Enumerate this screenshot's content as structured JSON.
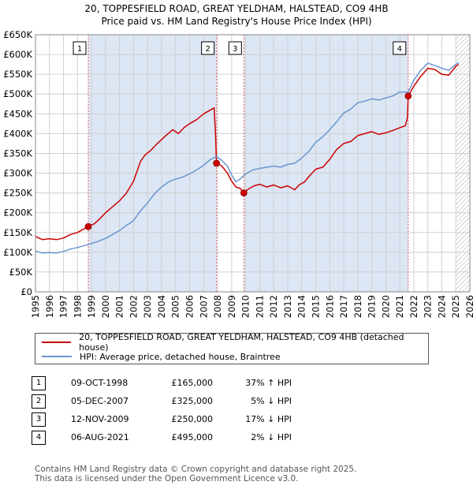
{
  "title": {
    "line1": "20, TOPPESFIELD ROAD, GREAT YELDHAM, HALSTEAD, CO9 4HB",
    "line2": "Price paid vs. HM Land Registry's House Price Index (HPI)"
  },
  "colors": {
    "property": "#cc0000",
    "hpi": "#6b95d0",
    "vline": "#e06060",
    "shade": "#dce6f4",
    "hatch": "#aaaaaa"
  },
  "chart_data": {
    "type": "line",
    "xlim": [
      1995,
      2026
    ],
    "ylim": [
      0,
      650000
    ],
    "y_ticks": [
      {
        "value": 0,
        "label": "£0"
      },
      {
        "value": 50000,
        "label": "£50K"
      },
      {
        "value": 100000,
        "label": "£100K"
      },
      {
        "value": 150000,
        "label": "£150K"
      },
      {
        "value": 200000,
        "label": "£200K"
      },
      {
        "value": 250000,
        "label": "£250K"
      },
      {
        "value": 300000,
        "label": "£300K"
      },
      {
        "value": 350000,
        "label": "£350K"
      },
      {
        "value": 400000,
        "label": "£400K"
      },
      {
        "value": 450000,
        "label": "£450K"
      },
      {
        "value": 500000,
        "label": "£500K"
      },
      {
        "value": 550000,
        "label": "£550K"
      },
      {
        "value": 600000,
        "label": "£600K"
      },
      {
        "value": 650000,
        "label": "£650K"
      }
    ],
    "x_ticks": [
      "1995",
      "1996",
      "1997",
      "1998",
      "1999",
      "2000",
      "2001",
      "2002",
      "2003",
      "2004",
      "2005",
      "2006",
      "2007",
      "2008",
      "2009",
      "2010",
      "2011",
      "2012",
      "2013",
      "2014",
      "2015",
      "2016",
      "2017",
      "2018",
      "2019",
      "2020",
      "2021",
      "2022",
      "2023",
      "2024",
      "2025",
      "2026"
    ],
    "hatch_from": 2025.0,
    "series": [
      {
        "name": "20, TOPPESFIELD ROAD, GREAT YELDHAM, HALSTEAD, CO9 4HB (detached house)",
        "role": "property",
        "points": [
          [
            1995.0,
            140000
          ],
          [
            1995.5,
            132000
          ],
          [
            1996.0,
            134000
          ],
          [
            1996.5,
            132000
          ],
          [
            1997.0,
            136000
          ],
          [
            1997.5,
            145000
          ],
          [
            1998.0,
            150000
          ],
          [
            1998.5,
            160000
          ],
          [
            1998.77,
            165000
          ],
          [
            1999.2,
            172000
          ],
          [
            1999.6,
            185000
          ],
          [
            2000.0,
            200000
          ],
          [
            2000.5,
            215000
          ],
          [
            2001.0,
            230000
          ],
          [
            2001.5,
            250000
          ],
          [
            2002.0,
            280000
          ],
          [
            2002.5,
            330000
          ],
          [
            2002.8,
            345000
          ],
          [
            2003.3,
            360000
          ],
          [
            2003.7,
            375000
          ],
          [
            2004.0,
            385000
          ],
          [
            2004.3,
            395000
          ],
          [
            2004.8,
            410000
          ],
          [
            2005.2,
            400000
          ],
          [
            2005.6,
            415000
          ],
          [
            2006.0,
            425000
          ],
          [
            2006.5,
            435000
          ],
          [
            2007.0,
            450000
          ],
          [
            2007.5,
            460000
          ],
          [
            2007.75,
            465000
          ],
          [
            2007.85,
            400000
          ],
          [
            2007.92,
            325000
          ],
          [
            2008.3,
            318000
          ],
          [
            2008.7,
            300000
          ],
          [
            2009.0,
            280000
          ],
          [
            2009.3,
            265000
          ],
          [
            2009.6,
            262000
          ],
          [
            2009.87,
            250000
          ],
          [
            2010.2,
            260000
          ],
          [
            2010.6,
            268000
          ],
          [
            2011.0,
            272000
          ],
          [
            2011.5,
            265000
          ],
          [
            2012.0,
            270000
          ],
          [
            2012.5,
            263000
          ],
          [
            2013.0,
            268000
          ],
          [
            2013.5,
            258000
          ],
          [
            2013.8,
            270000
          ],
          [
            2014.2,
            278000
          ],
          [
            2014.6,
            295000
          ],
          [
            2015.0,
            310000
          ],
          [
            2015.5,
            315000
          ],
          [
            2016.0,
            335000
          ],
          [
            2016.5,
            360000
          ],
          [
            2017.0,
            375000
          ],
          [
            2017.5,
            380000
          ],
          [
            2018.0,
            395000
          ],
          [
            2018.5,
            400000
          ],
          [
            2019.0,
            405000
          ],
          [
            2019.5,
            398000
          ],
          [
            2020.0,
            402000
          ],
          [
            2020.5,
            408000
          ],
          [
            2021.0,
            415000
          ],
          [
            2021.4,
            420000
          ],
          [
            2021.55,
            440000
          ],
          [
            2021.6,
            495000
          ],
          [
            2022.0,
            520000
          ],
          [
            2022.5,
            545000
          ],
          [
            2023.0,
            565000
          ],
          [
            2023.5,
            562000
          ],
          [
            2024.0,
            550000
          ],
          [
            2024.5,
            548000
          ],
          [
            2025.0,
            570000
          ],
          [
            2025.2,
            575000
          ]
        ]
      },
      {
        "name": "HPI: Average price, detached house, Braintree",
        "role": "hpi",
        "points": [
          [
            1995.0,
            103000
          ],
          [
            1995.5,
            98000
          ],
          [
            1996.0,
            99000
          ],
          [
            1996.5,
            98000
          ],
          [
            1997.0,
            102000
          ],
          [
            1997.5,
            108000
          ],
          [
            1998.0,
            112000
          ],
          [
            1998.5,
            117000
          ],
          [
            1999.0,
            122000
          ],
          [
            1999.5,
            128000
          ],
          [
            2000.0,
            135000
          ],
          [
            2000.5,
            145000
          ],
          [
            2001.0,
            155000
          ],
          [
            2001.5,
            168000
          ],
          [
            2002.0,
            180000
          ],
          [
            2002.5,
            205000
          ],
          [
            2003.0,
            225000
          ],
          [
            2003.5,
            248000
          ],
          [
            2004.0,
            265000
          ],
          [
            2004.5,
            278000
          ],
          [
            2005.0,
            285000
          ],
          [
            2005.5,
            290000
          ],
          [
            2006.0,
            298000
          ],
          [
            2006.5,
            308000
          ],
          [
            2007.0,
            320000
          ],
          [
            2007.5,
            335000
          ],
          [
            2007.92,
            342000
          ],
          [
            2008.3,
            332000
          ],
          [
            2008.7,
            318000
          ],
          [
            2009.0,
            295000
          ],
          [
            2009.3,
            278000
          ],
          [
            2009.6,
            285000
          ],
          [
            2010.0,
            298000
          ],
          [
            2010.5,
            308000
          ],
          [
            2011.0,
            312000
          ],
          [
            2011.5,
            315000
          ],
          [
            2012.0,
            318000
          ],
          [
            2012.5,
            315000
          ],
          [
            2013.0,
            322000
          ],
          [
            2013.5,
            325000
          ],
          [
            2014.0,
            338000
          ],
          [
            2014.5,
            355000
          ],
          [
            2015.0,
            378000
          ],
          [
            2015.5,
            392000
          ],
          [
            2016.0,
            410000
          ],
          [
            2016.5,
            430000
          ],
          [
            2017.0,
            452000
          ],
          [
            2017.5,
            462000
          ],
          [
            2018.0,
            478000
          ],
          [
            2018.5,
            482000
          ],
          [
            2019.0,
            488000
          ],
          [
            2019.5,
            485000
          ],
          [
            2020.0,
            490000
          ],
          [
            2020.5,
            495000
          ],
          [
            2021.0,
            505000
          ],
          [
            2021.6,
            505000
          ],
          [
            2022.0,
            535000
          ],
          [
            2022.5,
            560000
          ],
          [
            2023.0,
            578000
          ],
          [
            2023.5,
            572000
          ],
          [
            2024.0,
            565000
          ],
          [
            2024.5,
            560000
          ],
          [
            2025.0,
            575000
          ],
          [
            2025.2,
            580000
          ]
        ]
      }
    ],
    "sales": [
      {
        "label": "1",
        "date": "09-OCT-1998",
        "x": 1998.77,
        "price": "£165,000",
        "value": 165000,
        "hpi_text": "37% ↑ HPI"
      },
      {
        "label": "2",
        "date": "05-DEC-2007",
        "x": 2007.92,
        "price": "£325,000",
        "value": 325000,
        "hpi_text": "5% ↓ HPI"
      },
      {
        "label": "3",
        "date": "12-NOV-2009",
        "x": 2009.87,
        "price": "£250,000",
        "value": 250000,
        "hpi_text": "17% ↓ HPI"
      },
      {
        "label": "4",
        "date": "06-AUG-2021",
        "x": 2021.6,
        "price": "£495,000",
        "value": 495000,
        "hpi_text": "2% ↓ HPI"
      }
    ]
  },
  "legend": {
    "property_label": "20, TOPPESFIELD ROAD, GREAT YELDHAM, HALSTEAD, CO9 4HB (detached house)",
    "hpi_label": "HPI: Average price, detached house, Braintree"
  },
  "table": [
    {
      "num": "1",
      "date": "09-OCT-1998",
      "price": "£165,000",
      "hpi": "37% ↑ HPI"
    },
    {
      "num": "2",
      "date": "05-DEC-2007",
      "price": "£325,000",
      "hpi": "5% ↓ HPI"
    },
    {
      "num": "3",
      "date": "12-NOV-2009",
      "price": "£250,000",
      "hpi": "17% ↓ HPI"
    },
    {
      "num": "4",
      "date": "06-AUG-2021",
      "price": "£495,000",
      "hpi": "2% ↓ HPI"
    }
  ],
  "footer": {
    "line1": "Contains HM Land Registry data © Crown copyright and database right 2025.",
    "line2": "This data is licensed under the Open Government Licence v3.0."
  }
}
